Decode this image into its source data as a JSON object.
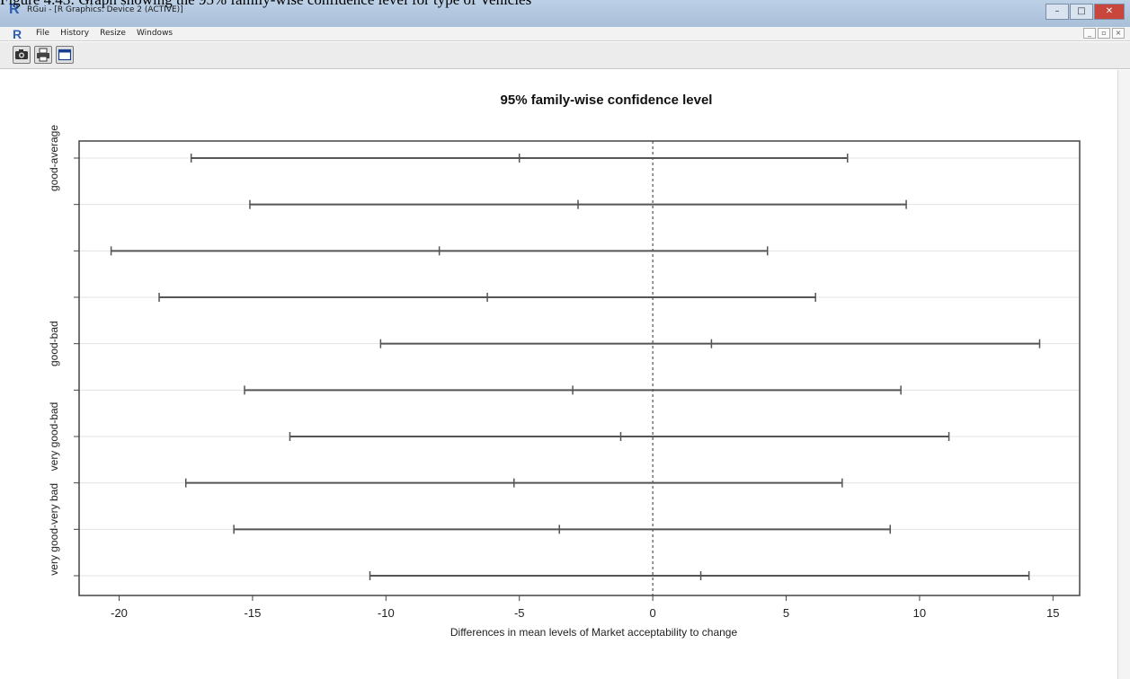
{
  "caption": "Figure 4.43: Graph showing the 95% family-wise confidence level for type of Vehicles",
  "window": {
    "title": "RGui - [R Graphics: Device 2 (ACTIVE)]",
    "menu": [
      "File",
      "History",
      "Resize",
      "Windows"
    ]
  },
  "icons": {
    "app_logo": "r-logo-icon",
    "toolbar": [
      "camera-icon",
      "print-icon",
      "window-icon"
    ],
    "window_controls": [
      "minimize-icon",
      "maximize-icon",
      "close-icon"
    ]
  },
  "colors": {
    "titlebar": "#b4c8df",
    "interval_line": "#555555",
    "reference_line": "#333333",
    "grid": "#e3e3e3"
  },
  "chart_data": {
    "type": "confidence-intervals",
    "title": "95% family-wise confidence level",
    "xlabel": "Differences in mean levels of Market acceptability to change",
    "ylabel": "",
    "xlim": [
      -21.5,
      16
    ],
    "xticks": [
      -20,
      -15,
      -10,
      -5,
      0,
      5,
      10,
      15
    ],
    "xtick_labels": [
      "-20",
      "-15",
      "-10",
      "-5",
      "0",
      "5",
      "10",
      "15"
    ],
    "reference_line": 0,
    "grid": "horizontal",
    "comparisons": [
      {
        "label": "good-average",
        "lwr": -17.3,
        "diff": -5.0,
        "upr": 7.3
      },
      {
        "label": "",
        "lwr": -15.1,
        "diff": -2.8,
        "upr": 9.5
      },
      {
        "label": "",
        "lwr": -20.3,
        "diff": -8.0,
        "upr": 4.3
      },
      {
        "label": "",
        "lwr": -18.5,
        "diff": -6.2,
        "upr": 6.1
      },
      {
        "label": "good-bad",
        "lwr": -10.2,
        "diff": 2.2,
        "upr": 14.5
      },
      {
        "label": "",
        "lwr": -15.3,
        "diff": -3.0,
        "upr": 9.3
      },
      {
        "label": "very good-bad",
        "lwr": -13.6,
        "diff": -1.2,
        "upr": 11.1
      },
      {
        "label": "",
        "lwr": -17.5,
        "diff": -5.2,
        "upr": 7.1
      },
      {
        "label": "very good-very bad",
        "lwr": -15.7,
        "diff": -3.5,
        "upr": 8.9
      },
      {
        "label": "",
        "lwr": -10.6,
        "diff": 1.8,
        "upr": 14.1
      }
    ]
  }
}
